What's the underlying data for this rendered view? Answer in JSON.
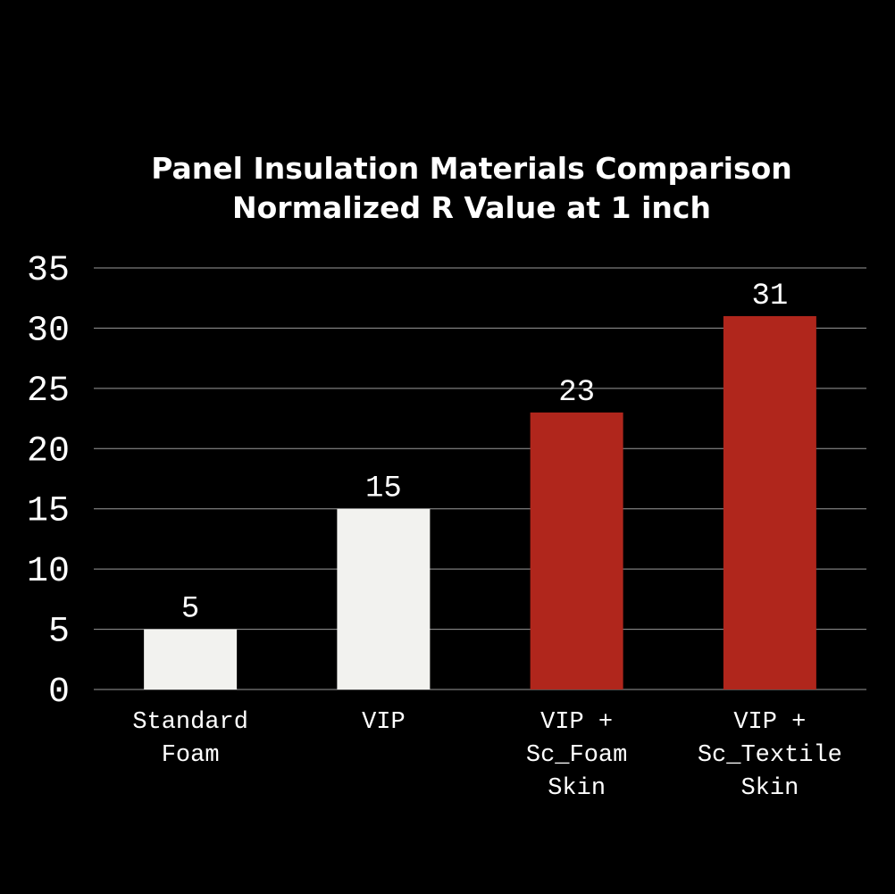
{
  "chart_data": {
    "type": "bar",
    "title": "Panel Insulation Materials Comparison",
    "subtitle": "Normalized R Value at 1 inch",
    "categories": [
      "Standard\nFoam",
      "VIP",
      "VIP +\nSc_Foam\nSkin",
      "VIP +\nSc_Textile\nSkin"
    ],
    "values": [
      5,
      15,
      23,
      31
    ],
    "colors": [
      "#f2f2ef",
      "#f2f2ef",
      "#b0261c",
      "#b0261c"
    ],
    "ylim": [
      0,
      35
    ],
    "yticks": [
      0,
      5,
      10,
      15,
      20,
      25,
      30,
      35
    ],
    "grid": true
  }
}
